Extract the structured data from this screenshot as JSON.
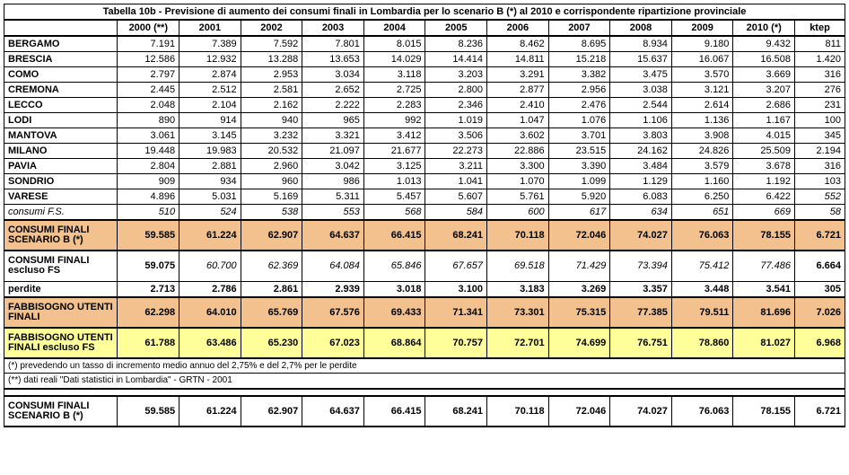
{
  "title": "Tabella 10b - Previsione di aumento dei consumi finali in Lombardia per lo scenario B (*) al 2010 e corrispondente ripartizione provinciale",
  "columns": [
    "",
    "2000 (**)",
    "2001",
    "2002",
    "2003",
    "2004",
    "2005",
    "2006",
    "2007",
    "2008",
    "2009",
    "2010 (*)",
    "ktep"
  ],
  "rows": [
    {
      "label": "BERGAMO",
      "vals": [
        "7.191",
        "7.389",
        "7.592",
        "7.801",
        "8.015",
        "8.236",
        "8.462",
        "8.695",
        "8.934",
        "9.180",
        "9.432",
        "811"
      ]
    },
    {
      "label": "BRESCIA",
      "vals": [
        "12.586",
        "12.932",
        "13.288",
        "13.653",
        "14.029",
        "14.414",
        "14.811",
        "15.218",
        "15.637",
        "16.067",
        "16.508",
        "1.420"
      ]
    },
    {
      "label": "COMO",
      "vals": [
        "2.797",
        "2.874",
        "2.953",
        "3.034",
        "3.118",
        "3.203",
        "3.291",
        "3.382",
        "3.475",
        "3.570",
        "3.669",
        "316"
      ]
    },
    {
      "label": "CREMONA",
      "vals": [
        "2.445",
        "2.512",
        "2.581",
        "2.652",
        "2.725",
        "2.800",
        "2.877",
        "2.956",
        "3.038",
        "3.121",
        "3.207",
        "276"
      ]
    },
    {
      "label": "LECCO",
      "vals": [
        "2.048",
        "2.104",
        "2.162",
        "2.222",
        "2.283",
        "2.346",
        "2.410",
        "2.476",
        "2.544",
        "2.614",
        "2.686",
        "231"
      ]
    },
    {
      "label": "LODI",
      "vals": [
        "890",
        "914",
        "940",
        "965",
        "992",
        "1.019",
        "1.047",
        "1.076",
        "1.106",
        "1.136",
        "1.167",
        "100"
      ]
    },
    {
      "label": "MANTOVA",
      "vals": [
        "3.061",
        "3.145",
        "3.232",
        "3.321",
        "3.412",
        "3.506",
        "3.602",
        "3.701",
        "3.803",
        "3.908",
        "4.015",
        "345"
      ]
    },
    {
      "label": "MILANO",
      "vals": [
        "19.448",
        "19.983",
        "20.532",
        "21.097",
        "21.677",
        "22.273",
        "22.886",
        "23.515",
        "24.162",
        "24.826",
        "25.509",
        "2.194"
      ]
    },
    {
      "label": "PAVIA",
      "vals": [
        "2.804",
        "2.881",
        "2.960",
        "3.042",
        "3.125",
        "3.211",
        "3.300",
        "3.390",
        "3.484",
        "3.579",
        "3.678",
        "316"
      ]
    },
    {
      "label": "SONDRIO",
      "vals": [
        "909",
        "934",
        "960",
        "986",
        "1.013",
        "1.041",
        "1.070",
        "1.099",
        "1.129",
        "1.160",
        "1.192",
        "103"
      ]
    },
    {
      "label": "VARESE",
      "vals": [
        "4.896",
        "5.031",
        "5.169",
        "5.311",
        "5.457",
        "5.607",
        "5.761",
        "5.920",
        "6.083",
        "6.250",
        "6.422",
        "552"
      ],
      "italic_last": true
    },
    {
      "label": "consumi F.S.",
      "vals": [
        "510",
        "524",
        "538",
        "553",
        "568",
        "584",
        "600",
        "617",
        "634",
        "651",
        "669",
        "58"
      ],
      "italic": true
    }
  ],
  "consumi_finali_b": {
    "label": "CONSUMI FINALI SCENARIO B (*)",
    "vals": [
      "59.585",
      "61.224",
      "62.907",
      "64.637",
      "66.415",
      "68.241",
      "70.118",
      "72.046",
      "74.027",
      "76.063",
      "78.155",
      "6.721"
    ]
  },
  "escluso_fs": {
    "label": "CONSUMI FINALI escluso FS",
    "vals": [
      "59.075",
      "60.700",
      "62.369",
      "64.084",
      "65.846",
      "67.657",
      "69.518",
      "71.429",
      "73.394",
      "75.412",
      "77.486",
      "6.664"
    ]
  },
  "perdite": {
    "label": "perdite",
    "vals": [
      "2.713",
      "2.786",
      "2.861",
      "2.939",
      "3.018",
      "3.100",
      "3.183",
      "3.269",
      "3.357",
      "3.448",
      "3.541",
      "305"
    ]
  },
  "fabbisogno": {
    "label": "FABBISOGNO UTENTI FINALI",
    "vals": [
      "62.298",
      "64.010",
      "65.769",
      "67.576",
      "69.433",
      "71.341",
      "73.301",
      "75.315",
      "77.385",
      "79.511",
      "81.696",
      "7.026"
    ]
  },
  "fabbisogno_escluso": {
    "label": "FABBISOGNO UTENTI FINALI escluso FS",
    "vals": [
      "61.788",
      "63.486",
      "65.230",
      "67.023",
      "68.864",
      "70.757",
      "72.701",
      "74.699",
      "76.751",
      "78.860",
      "81.027",
      "6.968"
    ]
  },
  "note1": "(*) prevedendo un tasso di incremento medio annuo del 2,75% e del 2,7% per le perdite",
  "note2": "(**) dati reali \"Dati statistici in Lombardia\" - GRTN - 2001",
  "final_row": {
    "label": "CONSUMI FINALI SCENARIO B (*)",
    "vals": [
      "59.585",
      "61.224",
      "62.907",
      "64.637",
      "66.415",
      "68.241",
      "70.118",
      "72.046",
      "74.027",
      "76.063",
      "78.155",
      "6.721"
    ]
  },
  "styles": {
    "orange_bg": "#f2c18e",
    "yellow_bg": "#ffff99",
    "border_color": "#000000",
    "font_family": "Arial",
    "font_size_body": 11,
    "font_size_notes": 10
  }
}
